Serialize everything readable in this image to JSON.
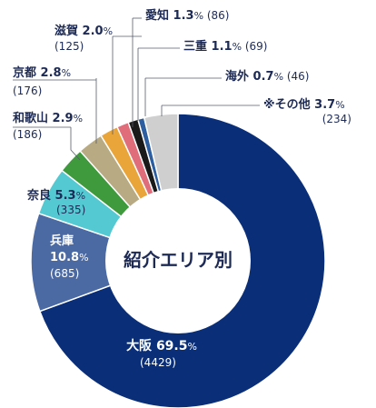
{
  "chart_data": {
    "type": "pie",
    "title": "紹介エリア別",
    "slices": [
      {
        "name": "大阪",
        "percent_label": "69.5",
        "count_label": "(4429)",
        "value": 69.5,
        "count": 4429,
        "color": "#0a2f78"
      },
      {
        "name": "兵庫",
        "percent_label": "10.8",
        "count_label": "(685)",
        "value": 10.8,
        "count": 685,
        "color": "#4b6aa4"
      },
      {
        "name": "奈良",
        "percent_label": "5.3",
        "count_label": "(335)",
        "value": 5.3,
        "count": 335,
        "color": "#55c9d2"
      },
      {
        "name": "和歌山",
        "percent_label": "2.9",
        "count_label": "(186)",
        "value": 2.9,
        "count": 186,
        "color": "#3e9a3c"
      },
      {
        "name": "京都",
        "percent_label": "2.8",
        "count_label": "(176)",
        "value": 2.8,
        "count": 176,
        "color": "#b8aa83"
      },
      {
        "name": "滋賀",
        "percent_label": "2.0",
        "count_label": "(125)",
        "value": 2.0,
        "count": 125,
        "color": "#e9a53a"
      },
      {
        "name": "愛知",
        "percent_label": "1.3",
        "count_label": "(86)",
        "value": 1.3,
        "count": 86,
        "color": "#e06d7a"
      },
      {
        "name": "三重",
        "percent_label": "1.1",
        "count_label": "(69)",
        "value": 1.1,
        "count": 69,
        "color": "#1a1a1a"
      },
      {
        "name": "海外",
        "percent_label": "0.7",
        "count_label": "(46)",
        "value": 0.7,
        "count": 46,
        "color": "#2c5ea0"
      },
      {
        "name": "※その他",
        "percent_label": "3.7",
        "count_label": "(234)",
        "value": 3.7,
        "count": 234,
        "color": "#cfcfcf"
      }
    ],
    "unit": "%",
    "text_color": "#1c2a55"
  }
}
